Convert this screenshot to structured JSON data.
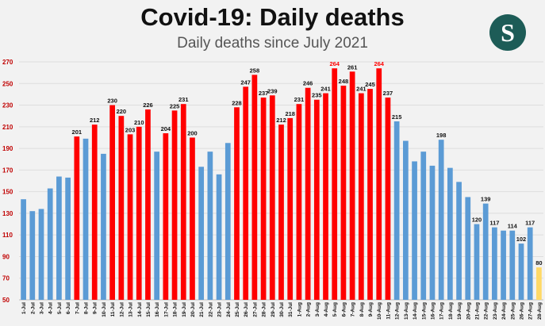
{
  "title": "Covid-19: Daily deaths",
  "subtitle": "Daily deaths since July 2021",
  "logo_text": "S",
  "colors": {
    "blue": "#5b9bd5",
    "red": "#ff0000",
    "yellow": "#ffd966",
    "axis_text": "#c00000",
    "label": "#111111",
    "grid": "#dddddd",
    "logo_bg": "#1d5c57"
  },
  "chart_data": {
    "type": "bar",
    "title": "Covid-19: Daily deaths",
    "subtitle": "Daily deaths since July 2021",
    "xlabel": "",
    "ylabel": "",
    "ylim": [
      50,
      270
    ],
    "yticks": [
      50,
      70,
      90,
      110,
      130,
      150,
      170,
      190,
      210,
      230,
      250,
      270
    ],
    "grid": true,
    "categories": [
      "1-Jul",
      "2-Jul",
      "3-Jul",
      "4-Jul",
      "5-Jul",
      "6-Jul",
      "7-Jul",
      "8-Jul",
      "9-Jul",
      "10-Jul",
      "11-Jul",
      "12-Jul",
      "13-Jul",
      "14-Jul",
      "15-Jul",
      "16-Jul",
      "17-Jul",
      "18-Jul",
      "19-Jul",
      "20-Jul",
      "21-Jul",
      "22-Jul",
      "23-Jul",
      "24-Jul",
      "25-Jul",
      "26-Jul",
      "27-Jul",
      "28-Jul",
      "29-Jul",
      "30-Jul",
      "31-Jul",
      "1-Aug",
      "2-Aug",
      "3-Aug",
      "4-Aug",
      "5-Aug",
      "6-Aug",
      "7-Aug",
      "8-Aug",
      "9-Aug",
      "10-Aug",
      "11-Aug",
      "12-Aug",
      "13-Aug",
      "14-Aug",
      "15-Aug",
      "16-Aug",
      "17-Aug",
      "18-Aug",
      "19-Aug",
      "20-Aug",
      "21-Aug",
      "22-Aug",
      "23-Aug",
      "24-Aug",
      "25-Aug",
      "26-Aug",
      "27-Aug",
      "28-Aug"
    ],
    "values": [
      143,
      132,
      134,
      153,
      164,
      163,
      201,
      199,
      212,
      185,
      230,
      220,
      203,
      210,
      226,
      187,
      204,
      225,
      231,
      200,
      173,
      187,
      166,
      195,
      228,
      247,
      258,
      237,
      239,
      212,
      218,
      231,
      246,
      235,
      241,
      264,
      248,
      261,
      241,
      245,
      264,
      237,
      215,
      197,
      178,
      187,
      174,
      198,
      172,
      159,
      145,
      120,
      139,
      117,
      114,
      114,
      102,
      117,
      80
    ],
    "colors": [
      "blue",
      "blue",
      "blue",
      "blue",
      "blue",
      "blue",
      "red",
      "blue",
      "red",
      "blue",
      "red",
      "red",
      "red",
      "red",
      "red",
      "blue",
      "red",
      "red",
      "red",
      "red",
      "blue",
      "blue",
      "blue",
      "blue",
      "red",
      "red",
      "red",
      "red",
      "red",
      "red",
      "red",
      "red",
      "red",
      "red",
      "red",
      "red",
      "red",
      "red",
      "red",
      "red",
      "red",
      "red",
      "blue",
      "blue",
      "blue",
      "blue",
      "blue",
      "blue",
      "blue",
      "blue",
      "blue",
      "blue",
      "blue",
      "blue",
      "blue",
      "blue",
      "blue",
      "blue",
      "yellow"
    ],
    "data_labels": {
      "6": "201",
      "8": "212",
      "10": "230",
      "11": "220",
      "12": "203",
      "13": "210",
      "14": "226",
      "16": "204",
      "17": "225",
      "18": "231",
      "19": "200",
      "24": "228",
      "25": "247",
      "26": "258",
      "27": "237",
      "28": "239",
      "29": "212",
      "30": "218",
      "31": "231",
      "32": "246",
      "33": "235",
      "34": "241",
      "35": "264",
      "36": "248",
      "37": "261",
      "38": "241",
      "39": "245",
      "40": "264",
      "41": "237",
      "42": "215",
      "47": "198",
      "51": "120",
      "52": "139",
      "53": "117",
      "55": "114",
      "56": "102",
      "57": "117",
      "58": "80"
    },
    "highlight_labels": [
      "35",
      "40"
    ]
  }
}
